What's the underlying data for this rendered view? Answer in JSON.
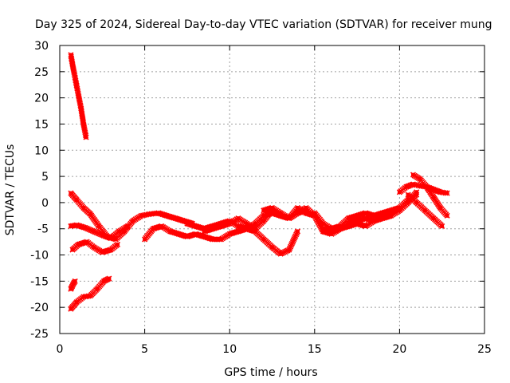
{
  "chart_data": {
    "type": "scatter",
    "title": "Day 325 of 2024, Sidereal Day-to-day VTEC variation (SDTVAR) for receiver mung",
    "xlabel": "GPS time / hours",
    "ylabel": "SDTVAR / TECUs",
    "xlim": [
      0,
      25
    ],
    "ylim": [
      -25,
      30
    ],
    "xticks": [
      0,
      5,
      10,
      15,
      20,
      25
    ],
    "yticks": [
      -25,
      -20,
      -15,
      -10,
      -5,
      0,
      5,
      10,
      15,
      20,
      25,
      30
    ],
    "grid": true,
    "marker_color": "#ff0000",
    "series": [
      {
        "name": "trace-1",
        "x": [
          0.65,
          0.8,
          0.95,
          1.1,
          1.25,
          1.4,
          1.55
        ],
        "y": [
          28.2,
          25.5,
          23.0,
          20.5,
          18.0,
          15.0,
          12.5
        ]
      },
      {
        "name": "trace-2",
        "x": [
          0.65,
          1.0,
          1.4,
          1.8,
          2.3,
          2.8,
          3.3,
          3.8,
          4.3,
          4.8,
          5.3,
          5.8,
          6.3,
          6.8,
          7.3,
          7.8
        ],
        "y": [
          1.8,
          0.5,
          -1.0,
          -2.2,
          -4.5,
          -6.5,
          -7.0,
          -5.5,
          -3.5,
          -2.5,
          -2.2,
          -2.0,
          -2.5,
          -3.0,
          -3.5,
          -4.0
        ]
      },
      {
        "name": "trace-3",
        "x": [
          0.65,
          1.0,
          1.5,
          2.0,
          2.5,
          3.0,
          3.5,
          4.0
        ],
        "y": [
          -4.5,
          -4.3,
          -4.8,
          -5.5,
          -6.2,
          -6.8,
          -5.5,
          -4.5
        ]
      },
      {
        "name": "trace-4",
        "x": [
          0.75,
          1.1,
          1.6,
          2.0,
          2.5,
          3.0,
          3.4
        ],
        "y": [
          -9.0,
          -8.0,
          -7.5,
          -8.5,
          -9.5,
          -9.0,
          -8.0
        ]
      },
      {
        "name": "trace-5",
        "x": [
          0.65,
          0.8,
          0.9
        ],
        "y": [
          -16.5,
          -15.5,
          -15.0
        ]
      },
      {
        "name": "trace-6",
        "x": [
          0.65,
          1.0,
          1.4,
          1.8,
          2.2,
          2.6,
          2.9
        ],
        "y": [
          -20.3,
          -19.0,
          -18.0,
          -17.8,
          -16.5,
          -15.0,
          -14.5
        ]
      },
      {
        "name": "trace-7",
        "x": [
          5.0,
          5.5,
          6.0,
          6.5,
          7.0,
          7.5,
          8.0,
          8.5,
          9.0,
          9.5,
          10.0,
          10.5,
          11.0,
          11.5,
          12.0,
          12.5,
          13.0,
          13.5,
          14.0
        ],
        "y": [
          -7.0,
          -5.0,
          -4.5,
          -5.5,
          -6.0,
          -6.5,
          -6.0,
          -6.5,
          -7.0,
          -7.0,
          -6.0,
          -5.5,
          -5.0,
          -5.5,
          -7.0,
          -8.5,
          -9.8,
          -9.0,
          -5.5
        ]
      },
      {
        "name": "trace-8",
        "x": [
          7.5,
          8.0,
          8.5,
          9.0,
          9.5,
          10.0,
          10.5,
          11.0,
          11.5,
          12.0,
          12.5,
          13.0,
          13.5,
          14.0,
          14.5
        ],
        "y": [
          -4.0,
          -4.5,
          -5.0,
          -4.5,
          -4.0,
          -3.5,
          -4.5,
          -5.0,
          -4.0,
          -2.5,
          -2.0,
          -2.5,
          -3.0,
          -2.0,
          -1.5
        ]
      },
      {
        "name": "trace-9",
        "x": [
          8.5,
          9.0,
          9.5,
          10.0,
          10.5,
          11.0,
          11.5,
          12.0,
          12.5,
          13.0,
          13.5,
          14.0,
          14.5,
          15.0
        ],
        "y": [
          -5.5,
          -5.0,
          -4.5,
          -4.0,
          -3.0,
          -4.0,
          -5.0,
          -3.5,
          -1.5,
          -2.5,
          -3.0,
          -1.0,
          -2.0,
          -2.5
        ]
      },
      {
        "name": "trace-10",
        "x": [
          12.0,
          12.5,
          13.0,
          13.5,
          14.0,
          14.5,
          15.0,
          15.5,
          16.0,
          16.5,
          17.0,
          17.5,
          18.0,
          18.5,
          19.0,
          19.5,
          20.0,
          20.5,
          21.0
        ],
        "y": [
          -1.5,
          -1.0,
          -2.0,
          -3.0,
          -2.0,
          -1.0,
          -2.5,
          -5.5,
          -6.0,
          -5.0,
          -4.0,
          -3.5,
          -3.0,
          -3.5,
          -3.0,
          -2.5,
          -1.5,
          0.0,
          2.0
        ]
      },
      {
        "name": "trace-11",
        "x": [
          15.0,
          15.5,
          16.0,
          16.5,
          17.0,
          17.5,
          18.0,
          18.5,
          19.0,
          19.5,
          20.0
        ],
        "y": [
          -2.0,
          -4.0,
          -5.0,
          -4.5,
          -3.0,
          -2.5,
          -2.0,
          -2.5,
          -2.0,
          -1.5,
          -1.0
        ]
      },
      {
        "name": "trace-12",
        "x": [
          15.5,
          16.0,
          16.5,
          17.0,
          17.5,
          18.0,
          18.5,
          19.0,
          19.5,
          20.0,
          20.5,
          21.0
        ],
        "y": [
          -5.0,
          -5.5,
          -5.0,
          -4.5,
          -4.0,
          -4.5,
          -3.5,
          -2.5,
          -2.0,
          -1.0,
          0.5,
          1.5
        ]
      },
      {
        "name": "trace-13",
        "x": [
          20.0,
          20.4,
          20.8,
          21.2,
          21.6,
          22.0,
          22.4,
          22.8
        ],
        "y": [
          2.0,
          3.0,
          3.5,
          3.2,
          3.0,
          2.5,
          2.0,
          1.8
        ]
      },
      {
        "name": "trace-14",
        "x": [
          20.8,
          21.2,
          21.6,
          22.0,
          22.4,
          22.8
        ],
        "y": [
          5.3,
          4.5,
          3.0,
          1.0,
          -1.0,
          -2.5
        ]
      },
      {
        "name": "trace-15",
        "x": [
          20.5,
          21.0,
          21.5,
          22.0,
          22.5
        ],
        "y": [
          1.5,
          0.0,
          -1.5,
          -3.0,
          -4.5
        ]
      }
    ]
  }
}
